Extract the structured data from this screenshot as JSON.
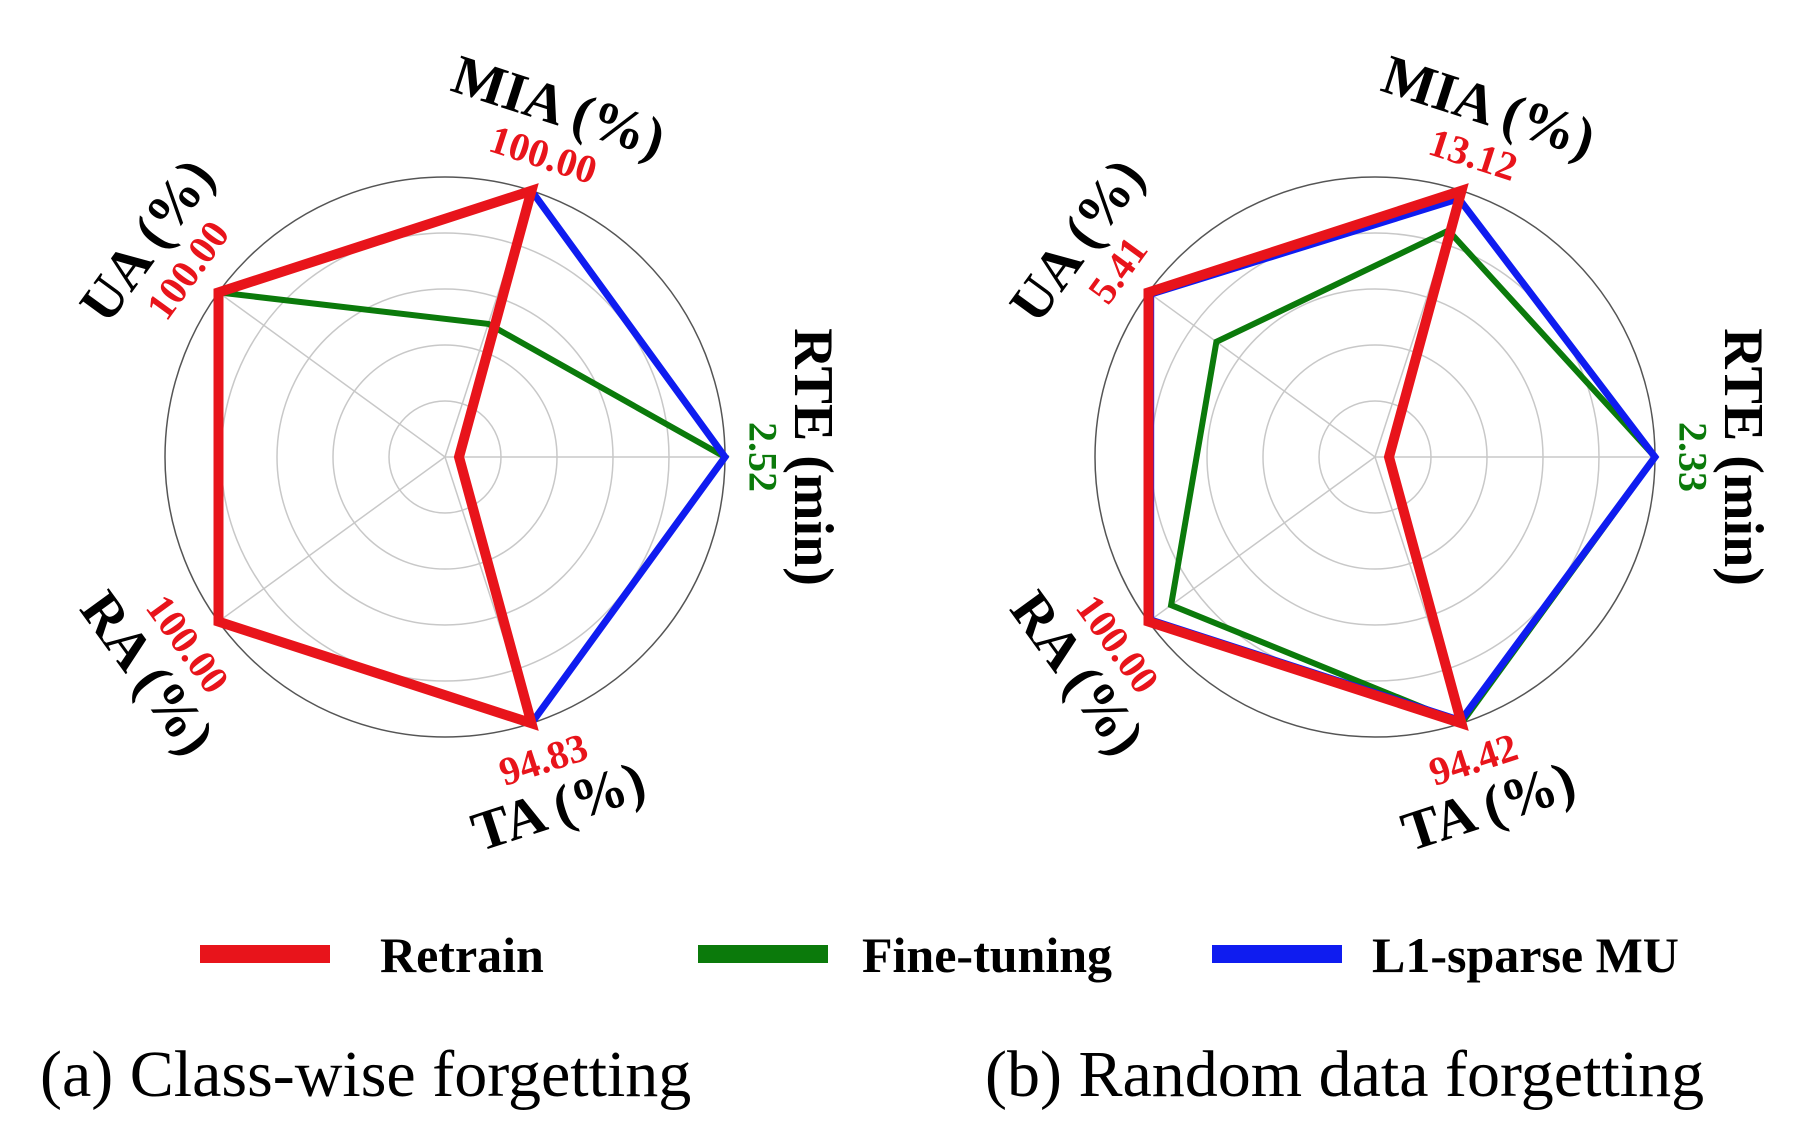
{
  "colors": {
    "retrain": "#e8141b",
    "fine_tuning": "#0b7a0b",
    "l1_sparse": "#0f1cf0",
    "grid": "#c8c8c8",
    "outer_ring": "#555555"
  },
  "legend": [
    {
      "key": "retrain",
      "label": "Retrain"
    },
    {
      "key": "fine_tuning",
      "label": "Fine-tuning"
    },
    {
      "key": "l1_sparse",
      "label": "L1-sparse MU"
    }
  ],
  "chart_data": [
    {
      "type": "radar",
      "caption": "(a) Class-wise forgetting",
      "axes": [
        {
          "label": "RTE (min)",
          "max_label": "2.52",
          "max_color": "green"
        },
        {
          "label": "MIA (%)",
          "max_label": "100.00",
          "max_color": "red"
        },
        {
          "label": "UA (%)",
          "max_label": "100.00",
          "max_color": "red"
        },
        {
          "label": "RA (%)",
          "max_label": "100.00",
          "max_color": "red"
        },
        {
          "label": "TA (%)",
          "max_label": "94.83",
          "max_color": "red"
        }
      ],
      "rlim": [
        0,
        1
      ],
      "grid": true,
      "series": [
        {
          "name": "Retrain",
          "key": "retrain",
          "values": [
            0.05,
            1.0,
            1.0,
            1.0,
            1.0
          ]
        },
        {
          "name": "Fine-tuning",
          "key": "fine_tuning",
          "values": [
            1.0,
            0.5,
            1.0,
            1.0,
            1.0
          ]
        },
        {
          "name": "L1-sparse MU",
          "key": "l1_sparse",
          "values": [
            1.0,
            1.0,
            1.0,
            1.0,
            1.0
          ]
        }
      ]
    },
    {
      "type": "radar",
      "caption": "(b) Random data forgetting",
      "axes": [
        {
          "label": "RTE (min)",
          "max_label": "2.33",
          "max_color": "green"
        },
        {
          "label": "MIA (%)",
          "max_label": "13.12",
          "max_color": "red"
        },
        {
          "label": "UA (%)",
          "max_label": "5.41",
          "max_color": "red"
        },
        {
          "label": "RA (%)",
          "max_label": "100.00",
          "max_color": "red"
        },
        {
          "label": "TA (%)",
          "max_label": "94.42",
          "max_color": "red"
        }
      ],
      "rlim": [
        0,
        1
      ],
      "grid": true,
      "series": [
        {
          "name": "Retrain",
          "key": "retrain",
          "values": [
            0.05,
            1.0,
            1.0,
            1.0,
            1.0
          ]
        },
        {
          "name": "Fine-tuning",
          "key": "fine_tuning",
          "values": [
            1.0,
            0.85,
            0.7,
            0.9,
            1.0
          ]
        },
        {
          "name": "L1-sparse MU",
          "key": "l1_sparse",
          "values": [
            1.0,
            0.97,
            0.99,
            0.99,
            0.99
          ]
        }
      ]
    }
  ]
}
